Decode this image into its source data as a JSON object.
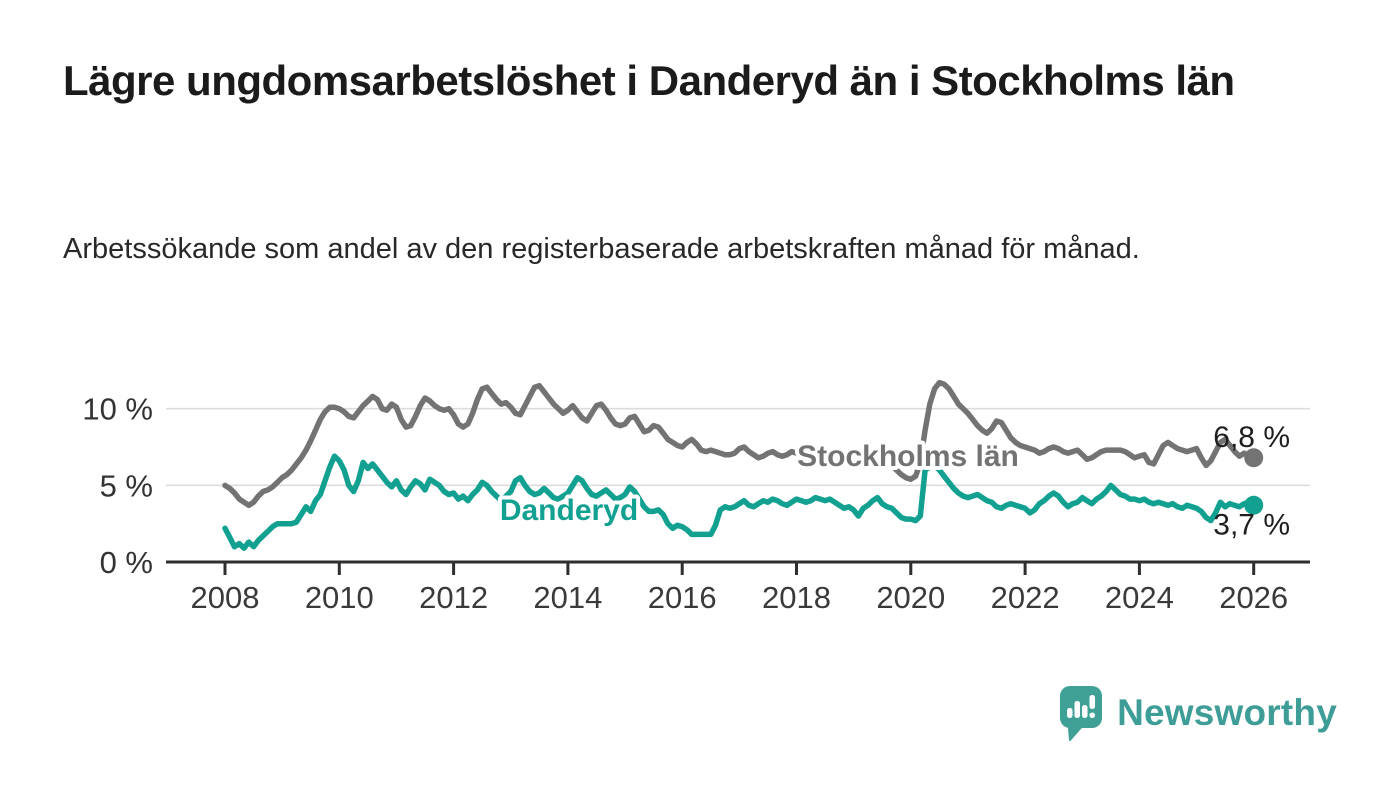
{
  "chart_data": {
    "type": "line",
    "title": "Lägre ungdomsarbetslöshet i Danderyd än i Stockholms län",
    "subtitle": "Arbetssökande som andel av den registerbaserade arbetskraften månad för månad.",
    "unit": "%",
    "grid": "horizontal",
    "x_start_year": 2008,
    "points_per_year": 12,
    "xlim": [
      2007.4,
      2027
    ],
    "ylim": [
      0,
      12
    ],
    "x_ticks": [
      "2008",
      "2010",
      "2012",
      "2014",
      "2016",
      "2018",
      "2020",
      "2022",
      "2024",
      "2026"
    ],
    "y_ticks": [
      {
        "value": 0,
        "label": "0 %"
      },
      {
        "value": 5,
        "label": "5 %"
      },
      {
        "value": 10,
        "label": "10 %"
      }
    ],
    "series": [
      {
        "name": "Stockholms län",
        "color": "#737373",
        "end_value": 6.8,
        "end_label": "6,8 %",
        "values": [
          5.0,
          4.8,
          4.5,
          4.1,
          3.9,
          3.7,
          3.9,
          4.3,
          4.6,
          4.7,
          4.9,
          5.2,
          5.5,
          5.7,
          6.0,
          6.4,
          6.8,
          7.3,
          7.9,
          8.6,
          9.3,
          9.8,
          10.1,
          10.1,
          10.0,
          9.8,
          9.5,
          9.4,
          9.8,
          10.2,
          10.5,
          10.8,
          10.6,
          10.0,
          9.9,
          10.3,
          10.1,
          9.3,
          8.8,
          8.9,
          9.5,
          10.2,
          10.7,
          10.5,
          10.2,
          10.0,
          9.9,
          10.0,
          9.6,
          9.0,
          8.8,
          9.0,
          9.7,
          10.6,
          11.3,
          11.4,
          11.0,
          10.6,
          10.3,
          10.4,
          10.1,
          9.7,
          9.6,
          10.2,
          10.8,
          11.4,
          11.5,
          11.1,
          10.7,
          10.3,
          10.0,
          9.7,
          9.9,
          10.2,
          9.8,
          9.4,
          9.2,
          9.7,
          10.2,
          10.3,
          9.9,
          9.4,
          9.0,
          8.9,
          9.0,
          9.4,
          9.5,
          9.0,
          8.5,
          8.6,
          8.9,
          8.8,
          8.4,
          8.0,
          7.8,
          7.6,
          7.5,
          7.8,
          8.0,
          7.7,
          7.3,
          7.2,
          7.3,
          7.2,
          7.1,
          7.0,
          7.0,
          7.1,
          7.4,
          7.5,
          7.2,
          7.0,
          6.8,
          6.9,
          7.1,
          7.2,
          7.0,
          6.9,
          7.0,
          7.2,
          7.1,
          7.0,
          6.9,
          6.8,
          6.7,
          6.8,
          7.0,
          7.0,
          6.8,
          6.6,
          6.5,
          6.6,
          6.5,
          6.4,
          6.3,
          6.2,
          6.3,
          6.5,
          6.6,
          6.5,
          6.3,
          6.0,
          5.7,
          5.5,
          5.4,
          5.6,
          6.5,
          8.6,
          10.3,
          11.3,
          11.7,
          11.6,
          11.3,
          10.8,
          10.3,
          10.0,
          9.7,
          9.3,
          8.9,
          8.6,
          8.4,
          8.7,
          9.2,
          9.1,
          8.6,
          8.1,
          7.8,
          7.6,
          7.5,
          7.4,
          7.3,
          7.1,
          7.2,
          7.4,
          7.5,
          7.4,
          7.2,
          7.1,
          7.2,
          7.3,
          7.0,
          6.7,
          6.8,
          7.0,
          7.2,
          7.3,
          7.3,
          7.3,
          7.3,
          7.2,
          7.0,
          6.8,
          6.9,
          7.0,
          6.5,
          6.4,
          7.0,
          7.6,
          7.8,
          7.6,
          7.4,
          7.3,
          7.2,
          7.3,
          7.4,
          6.8,
          6.3,
          6.6,
          7.2,
          7.8,
          8.0,
          7.6,
          7.2,
          6.9,
          7.1,
          6.9,
          6.8
        ]
      },
      {
        "name": "Danderyd",
        "color": "#12A191",
        "end_value": 3.7,
        "end_label": "3,7 %",
        "values": [
          2.2,
          1.6,
          1.0,
          1.2,
          0.9,
          1.3,
          1.0,
          1.4,
          1.7,
          2.0,
          2.3,
          2.5,
          2.5,
          2.5,
          2.5,
          2.6,
          3.1,
          3.6,
          3.3,
          4.0,
          4.4,
          5.3,
          6.2,
          6.9,
          6.6,
          6.0,
          5.0,
          4.6,
          5.3,
          6.5,
          6.1,
          6.4,
          6.0,
          5.6,
          5.2,
          4.9,
          5.3,
          4.7,
          4.4,
          4.9,
          5.3,
          5.1,
          4.7,
          5.4,
          5.2,
          5.0,
          4.6,
          4.4,
          4.5,
          4.1,
          4.3,
          4.0,
          4.4,
          4.7,
          5.2,
          5.0,
          4.6,
          4.3,
          4.0,
          4.3,
          4.6,
          5.3,
          5.5,
          5.0,
          4.6,
          4.4,
          4.5,
          4.8,
          4.5,
          4.2,
          4.1,
          4.3,
          4.5,
          5.0,
          5.5,
          5.3,
          4.8,
          4.4,
          4.3,
          4.5,
          4.7,
          4.4,
          4.1,
          4.2,
          4.4,
          4.9,
          4.6,
          4.1,
          3.6,
          3.3,
          3.3,
          3.4,
          3.1,
          2.5,
          2.2,
          2.4,
          2.3,
          2.1,
          1.8,
          1.8,
          1.8,
          1.8,
          1.8,
          2.4,
          3.4,
          3.6,
          3.5,
          3.6,
          3.8,
          4.0,
          3.7,
          3.6,
          3.8,
          4.0,
          3.9,
          4.1,
          4.0,
          3.8,
          3.7,
          3.9,
          4.1,
          4.0,
          3.9,
          4.0,
          4.2,
          4.1,
          4.0,
          4.1,
          3.9,
          3.7,
          3.5,
          3.6,
          3.4,
          3.0,
          3.5,
          3.7,
          4.0,
          4.2,
          3.8,
          3.6,
          3.5,
          3.2,
          2.9,
          2.8,
          2.8,
          2.7,
          3.0,
          6.0,
          6.2,
          6.3,
          6.0,
          5.6,
          5.2,
          4.8,
          4.5,
          4.3,
          4.2,
          4.3,
          4.4,
          4.2,
          4.0,
          3.9,
          3.6,
          3.5,
          3.7,
          3.8,
          3.7,
          3.6,
          3.5,
          3.2,
          3.4,
          3.8,
          4.0,
          4.3,
          4.5,
          4.3,
          3.9,
          3.6,
          3.8,
          3.9,
          4.2,
          4.0,
          3.8,
          4.1,
          4.3,
          4.6,
          5.0,
          4.7,
          4.4,
          4.3,
          4.1,
          4.1,
          4.0,
          4.1,
          3.9,
          3.8,
          3.9,
          3.8,
          3.7,
          3.8,
          3.6,
          3.5,
          3.7,
          3.6,
          3.5,
          3.3,
          2.9,
          2.7,
          3.2,
          3.9,
          3.6,
          3.8,
          3.7,
          3.6,
          3.8,
          3.9,
          3.7
        ]
      }
    ]
  },
  "footer": {
    "brand": "Newsworthy",
    "brand_color": "#3FA096",
    "brand_icon": "bar-chart-speech-bubble-icon"
  }
}
